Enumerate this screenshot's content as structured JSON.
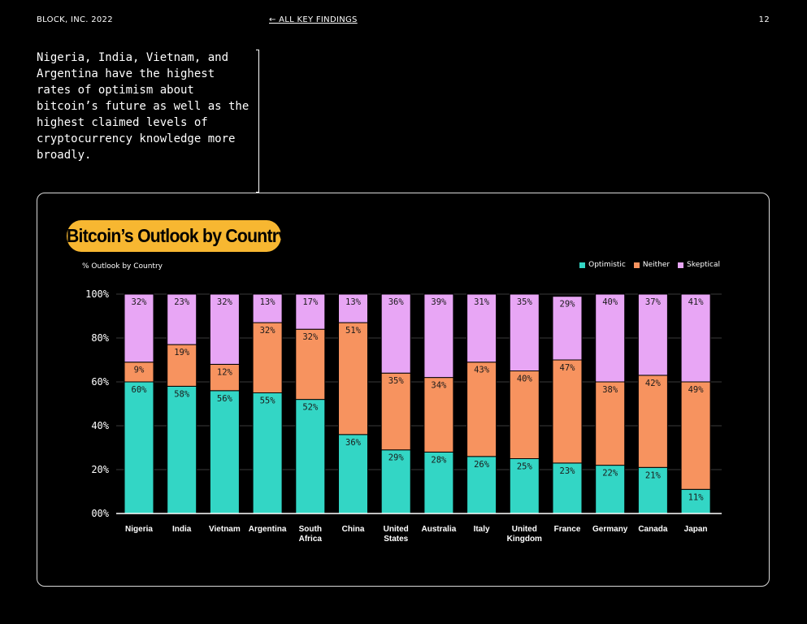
{
  "header": {
    "brand": "BLOCK, INC. 2022",
    "nav_link": "← ALL KEY FINDINGS",
    "page_number": "12"
  },
  "intro_text": "Nigeria, India, Vietnam, and Argentina have the highest rates of optimism about bitcoin’s future as well as the highest claimed levels of cryptocurrency knowledge more broadly.",
  "colors": {
    "optimistic": "#33d6c5",
    "neither": "#f7935f",
    "skeptical": "#e8a6f5",
    "title_bg": "#f7b731"
  },
  "chart_data": {
    "type": "bar",
    "stacked": true,
    "title": "Bitcoin’s Outlook by Country",
    "subtitle": "% Outlook by Country",
    "ylim": [
      0,
      100
    ],
    "yticks": [
      "00%",
      "20%",
      "40%",
      "60%",
      "80%",
      "100%"
    ],
    "legend_position": "top-right",
    "categories": [
      "Nigeria",
      "India",
      "Vietnam",
      "Argentina",
      "South Africa",
      "China",
      "United States",
      "Australia",
      "Italy",
      "United Kingdom",
      "France",
      "Germany",
      "Canada",
      "Japan"
    ],
    "series": [
      {
        "name": "Optimistic",
        "values": [
          60,
          58,
          56,
          55,
          52,
          36,
          29,
          28,
          26,
          25,
          23,
          22,
          21,
          11
        ]
      },
      {
        "name": "Neither",
        "values": [
          9,
          19,
          12,
          32,
          32,
          51,
          35,
          34,
          43,
          40,
          47,
          38,
          42,
          49
        ]
      },
      {
        "name": "Skeptical",
        "values": [
          32,
          23,
          32,
          13,
          17,
          13,
          36,
          39,
          31,
          35,
          29,
          40,
          37,
          41
        ]
      }
    ]
  }
}
